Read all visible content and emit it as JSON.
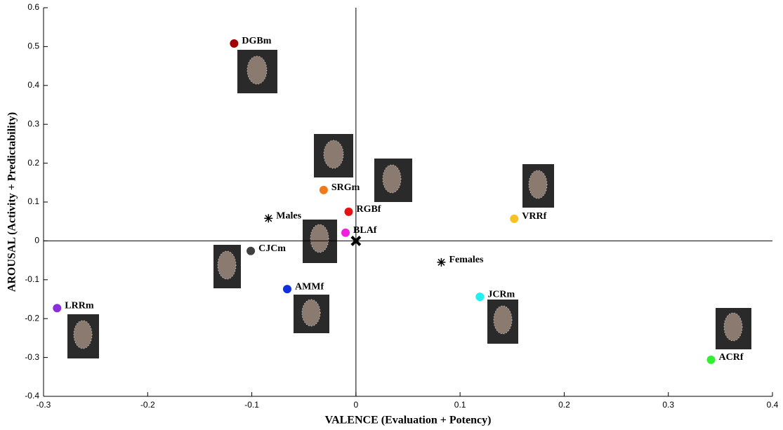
{
  "chart_data": {
    "type": "scatter",
    "xlabel": "VALENCE (Evaluation + Potency)",
    "ylabel": "AROUSAL (Activity + Predictability)",
    "xlim": [
      -0.3,
      0.4
    ],
    "xticks": [
      -0.3,
      -0.2,
      -0.1,
      0,
      0.1,
      0.2,
      0.3,
      0.4
    ],
    "ylim": [
      -0.4,
      0.6
    ],
    "yticks": [
      -0.4,
      -0.3,
      -0.2,
      -0.1,
      0,
      0.1,
      0.2,
      0.3,
      0.4,
      0.5,
      0.6
    ],
    "series": [
      {
        "name": "DGBm",
        "color": "#a00000",
        "marker": "circle",
        "x": [
          -0.117
        ],
        "values": [
          0.508
        ]
      },
      {
        "name": "SRGm",
        "color": "#f07a1a",
        "marker": "circle",
        "x": [
          -0.031
        ],
        "values": [
          0.131
        ]
      },
      {
        "name": "RGBf",
        "color": "#e81010",
        "marker": "circle",
        "x": [
          -0.007
        ],
        "values": [
          0.075
        ]
      },
      {
        "name": "BLAf",
        "color": "#f020e0",
        "marker": "circle",
        "x": [
          -0.01
        ],
        "values": [
          0.021
        ]
      },
      {
        "name": "VRRf",
        "color": "#f8c020",
        "marker": "circle",
        "x": [
          0.152
        ],
        "values": [
          0.057
        ]
      },
      {
        "name": "CJCm",
        "color": "#404040",
        "marker": "circle",
        "x": [
          -0.101
        ],
        "values": [
          -0.026
        ]
      },
      {
        "name": "AMMf",
        "color": "#1030e0",
        "marker": "circle",
        "x": [
          -0.066
        ],
        "values": [
          -0.124
        ]
      },
      {
        "name": "LRRm",
        "color": "#8a30d8",
        "marker": "circle",
        "x": [
          -0.287
        ],
        "values": [
          -0.173
        ]
      },
      {
        "name": "JCRm",
        "color": "#20f0f0",
        "marker": "circle",
        "x": [
          0.119
        ],
        "values": [
          -0.144
        ]
      },
      {
        "name": "ACRf",
        "color": "#30f030",
        "marker": "circle",
        "x": [
          0.341
        ],
        "values": [
          -0.306
        ]
      },
      {
        "name": "Males",
        "color": "#000000",
        "marker": "star",
        "x": [
          -0.084
        ],
        "values": [
          0.058
        ]
      },
      {
        "name": "Females",
        "color": "#000000",
        "marker": "star",
        "x": [
          0.082
        ],
        "values": [
          -0.055
        ]
      },
      {
        "color": "#000000",
        "marker": "x",
        "x": [
          0
        ],
        "values": [
          0
        ]
      }
    ]
  }
}
